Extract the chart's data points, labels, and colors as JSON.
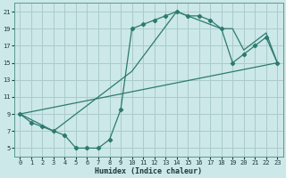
{
  "xlabel": "Humidex (Indice chaleur)",
  "bg_color": "#cce8e8",
  "grid_color": "#aacccc",
  "line_color": "#2d7a6e",
  "xlim": [
    -0.5,
    23.5
  ],
  "ylim": [
    4.0,
    22.0
  ],
  "xticks": [
    0,
    1,
    2,
    3,
    4,
    5,
    6,
    7,
    8,
    9,
    10,
    11,
    12,
    13,
    14,
    15,
    16,
    17,
    18,
    19,
    20,
    21,
    22,
    23
  ],
  "yticks": [
    5,
    7,
    9,
    11,
    13,
    15,
    17,
    19,
    21
  ],
  "curve1_x": [
    0,
    1,
    2,
    3,
    4,
    5,
    6,
    7,
    8,
    9,
    10,
    11,
    12,
    13,
    14,
    15,
    16,
    17,
    18,
    19,
    20,
    21,
    22,
    23
  ],
  "curve1_y": [
    9,
    8,
    7.5,
    7,
    6.5,
    5,
    5,
    5,
    6,
    9.5,
    19,
    19.5,
    20,
    20.5,
    21,
    20.5,
    20.5,
    20,
    19,
    15,
    16,
    17,
    18,
    15
  ],
  "curve2_x": [
    0,
    3,
    10,
    14,
    15,
    18,
    19,
    20,
    22,
    23
  ],
  "curve2_y": [
    9,
    7,
    14,
    21,
    20.5,
    19,
    19,
    16.5,
    18.5,
    15
  ],
  "curve3_x": [
    0,
    23
  ],
  "curve3_y": [
    9,
    15
  ],
  "tick_fontsize": 5.0,
  "xlabel_fontsize": 6.0,
  "figw": 3.2,
  "figh": 2.0
}
